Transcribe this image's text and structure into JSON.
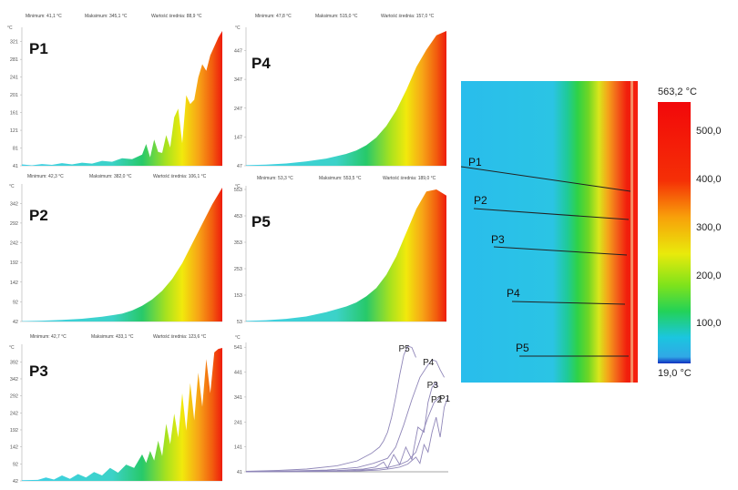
{
  "unit_label": "°C",
  "chart_data": [
    {
      "type": "area",
      "label": "P1",
      "stats": {
        "min": "Minimum: 41,1 °C",
        "max": "Maksimum: 345,1 °C",
        "avg": "Wartość średnia: 88,9 °C"
      },
      "yticks": [
        41,
        81,
        121,
        161,
        201,
        241,
        281,
        321
      ],
      "ylim": [
        41,
        345
      ],
      "x": [
        0,
        5,
        10,
        15,
        20,
        25,
        30,
        35,
        40,
        45,
        50,
        55,
        60,
        62,
        64,
        66,
        68,
        70,
        72,
        74,
        76,
        78,
        80,
        82,
        84,
        86,
        88,
        90,
        92,
        94,
        96,
        98,
        100
      ],
      "y": [
        44,
        42,
        45,
        43,
        47,
        44,
        48,
        46,
        52,
        50,
        58,
        56,
        66,
        90,
        60,
        100,
        72,
        70,
        110,
        82,
        150,
        170,
        92,
        200,
        180,
        190,
        240,
        270,
        255,
        290,
        310,
        330,
        345
      ]
    },
    {
      "type": "area",
      "label": "P2",
      "stats": {
        "min": "Minimum: 42,3 °C",
        "max": "Maksimum: 382,0 °C",
        "avg": "Wartość średnia: 106,1 °C"
      },
      "yticks": [
        42,
        92,
        142,
        192,
        242,
        292,
        342
      ],
      "ylim": [
        42,
        382
      ],
      "x": [
        0,
        10,
        20,
        30,
        40,
        50,
        55,
        60,
        65,
        70,
        75,
        80,
        85,
        90,
        95,
        100
      ],
      "y": [
        43,
        44,
        46,
        49,
        54,
        62,
        70,
        82,
        98,
        120,
        150,
        190,
        240,
        290,
        340,
        382
      ]
    },
    {
      "type": "area",
      "label": "P3",
      "stats": {
        "min": "Minimum: 42,7 °C",
        "max": "Maksimum: 433,1 °C",
        "avg": "Wartość średnia: 123,6 °C"
      },
      "yticks": [
        42,
        92,
        142,
        192,
        242,
        292,
        342,
        392
      ],
      "ylim": [
        42,
        433
      ],
      "x": [
        0,
        8,
        12,
        16,
        20,
        24,
        28,
        32,
        36,
        40,
        44,
        48,
        52,
        56,
        60,
        62,
        64,
        66,
        68,
        70,
        72,
        74,
        76,
        78,
        80,
        82,
        84,
        86,
        88,
        90,
        92,
        94,
        96,
        98,
        100
      ],
      "y": [
        44,
        45,
        52,
        46,
        58,
        48,
        62,
        52,
        68,
        58,
        80,
        66,
        90,
        80,
        120,
        95,
        130,
        102,
        160,
        115,
        210,
        150,
        240,
        170,
        300,
        190,
        330,
        220,
        360,
        260,
        400,
        300,
        420,
        430,
        433
      ]
    },
    {
      "type": "area",
      "label": "P4",
      "stats": {
        "min": "Minimum: 47,8 °C",
        "max": "Maksimum: 515,0 °C",
        "avg": "Wartość średnia: 157,0 °C"
      },
      "yticks": [
        47,
        147,
        247,
        347,
        447
      ],
      "ylim": [
        47,
        515
      ],
      "x": [
        0,
        10,
        20,
        30,
        40,
        50,
        55,
        60,
        65,
        70,
        75,
        80,
        85,
        90,
        95,
        100
      ],
      "y": [
        49,
        51,
        55,
        62,
        72,
        88,
        100,
        118,
        145,
        185,
        240,
        310,
        390,
        450,
        500,
        515
      ]
    },
    {
      "type": "area",
      "label": "P5",
      "stats": {
        "min": "Minimum: 53,3 °C",
        "max": "Maksimum: 553,5 °C",
        "avg": "Wartość średnia: 189,0 °C"
      },
      "yticks": [
        53,
        153,
        253,
        353,
        453,
        553
      ],
      "ylim": [
        53,
        553
      ],
      "x": [
        0,
        10,
        20,
        30,
        40,
        50,
        55,
        60,
        65,
        70,
        75,
        80,
        85,
        90,
        95,
        100
      ],
      "y": [
        55,
        58,
        63,
        72,
        88,
        110,
        125,
        148,
        180,
        230,
        300,
        390,
        480,
        545,
        553,
        530
      ]
    },
    {
      "type": "line",
      "yticks": [
        41,
        141,
        241,
        341,
        441,
        541
      ],
      "ylim": [
        41,
        560
      ],
      "series": [
        {
          "name": "P5",
          "x": [
            0,
            15,
            30,
            45,
            55,
            62,
            66,
            68,
            70,
            72,
            74,
            76,
            78,
            80,
            82,
            84
          ],
          "y": [
            43,
            46,
            52,
            65,
            85,
            115,
            140,
            165,
            200,
            260,
            340,
            430,
            510,
            545,
            540,
            500
          ]
        },
        {
          "name": "P4",
          "x": [
            0,
            20,
            40,
            55,
            63,
            70,
            74,
            78,
            82,
            86,
            90,
            92,
            94,
            96,
            98
          ],
          "y": [
            42,
            44,
            48,
            58,
            75,
            95,
            140,
            230,
            330,
            420,
            470,
            490,
            485,
            450,
            420
          ]
        },
        {
          "name": "P3",
          "x": [
            0,
            25,
            45,
            58,
            64,
            68,
            70,
            73,
            76,
            79,
            82,
            85,
            88,
            90,
            92,
            94,
            95
          ],
          "y": [
            42,
            43,
            46,
            52,
            60,
            80,
            55,
            110,
            70,
            140,
            90,
            220,
            200,
            320,
            380,
            400,
            380
          ]
        },
        {
          "name": "P2",
          "x": [
            0,
            30,
            50,
            62,
            70,
            76,
            80,
            84,
            87,
            90,
            93,
            96
          ],
          "y": [
            42,
            43,
            45,
            50,
            58,
            70,
            85,
            120,
            190,
            260,
            320,
            340
          ]
        },
        {
          "name": "P1",
          "x": [
            0,
            35,
            55,
            66,
            72,
            76,
            80,
            84,
            86,
            88,
            90,
            92,
            94,
            96,
            98,
            100
          ],
          "y": [
            41,
            42,
            44,
            48,
            54,
            60,
            72,
            100,
            75,
            150,
            120,
            200,
            260,
            180,
            300,
            345
          ]
        }
      ]
    }
  ],
  "thermal": {
    "lines": [
      {
        "label": "P1"
      },
      {
        "label": "P2"
      },
      {
        "label": "P3"
      },
      {
        "label": "P4"
      },
      {
        "label": "P5"
      }
    ]
  },
  "scale": {
    "max_label": "563,2 °C",
    "min_label": "19,0 °C",
    "ticks": [
      {
        "value": 500,
        "label": "500,0"
      },
      {
        "value": 400,
        "label": "400,0"
      },
      {
        "value": 300,
        "label": "300,0"
      },
      {
        "value": 200,
        "label": "200,0"
      },
      {
        "value": 100,
        "label": "100,0"
      }
    ],
    "min": 19.0,
    "max": 563.2
  }
}
